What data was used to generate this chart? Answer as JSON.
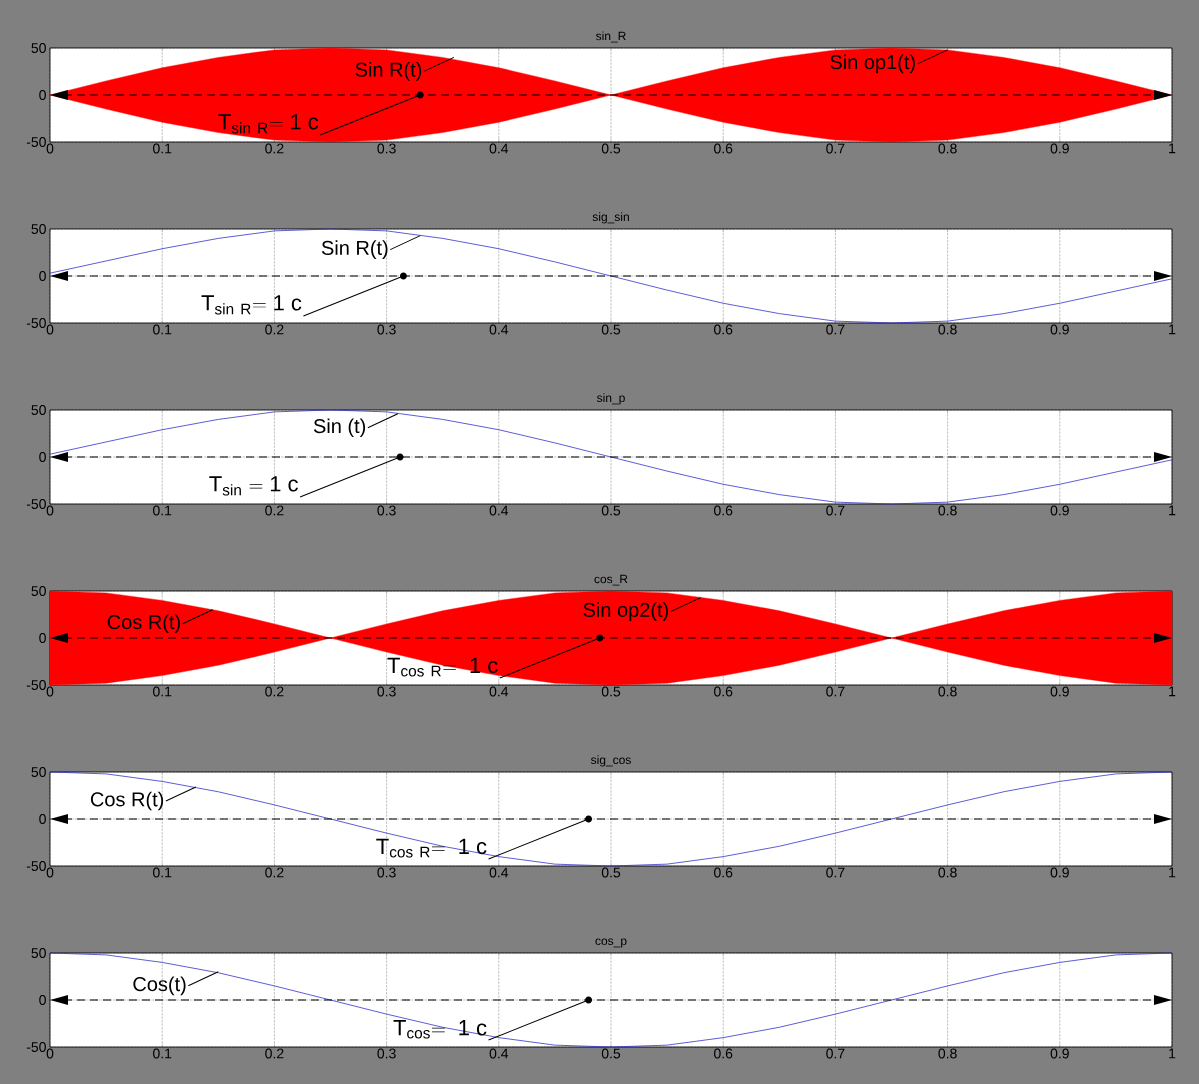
{
  "chart_data": [
    {
      "type": "area",
      "title": "sin_R",
      "xlim": [
        0,
        1
      ],
      "ylim": [
        -50,
        50
      ],
      "xticks": [
        0,
        0.1,
        0.2,
        0.3,
        0.4,
        0.5,
        0.6,
        0.7,
        0.8,
        0.9,
        1
      ],
      "yticks": [
        -50,
        0,
        50
      ],
      "grid": true,
      "x": [
        0,
        0.05,
        0.1,
        0.15,
        0.2,
        0.25,
        0.3,
        0.35,
        0.4,
        0.45,
        0.5,
        0.55,
        0.6,
        0.65,
        0.7,
        0.75,
        0.8,
        0.85,
        0.9,
        0.95,
        1
      ],
      "series": [
        {
          "color": "#ff0000",
          "values": [
            0,
            15,
            29,
            40,
            48,
            50,
            48,
            40,
            29,
            15,
            0,
            15,
            29,
            40,
            48,
            50,
            48,
            40,
            29,
            15,
            0
          ]
        },
        {
          "color": "#ff0000",
          "values": [
            0,
            -15,
            -29,
            -40,
            -48,
            -50,
            -48,
            -40,
            -29,
            -15,
            0,
            -15,
            -29,
            -40,
            -48,
            -50,
            -48,
            -40,
            -29,
            -15,
            0
          ]
        }
      ],
      "ref_lines": [
        {
          "axis": "y",
          "value": 0,
          "line_style": "dashed"
        }
      ],
      "annotations": [
        {
          "text": "Sin R(t)",
          "x": 0.36,
          "y": 40
        },
        {
          "text": "Sin op1(t)",
          "x": 0.8,
          "y": 48
        },
        {
          "text": "\\mathrm{T}_{\\mathrm{sin\\ R}}\\mathrm{=1\\ c}",
          "x": 0.33,
          "y": 0
        }
      ]
    },
    {
      "type": "line",
      "title": "sig_sin",
      "xlim": [
        0,
        1
      ],
      "ylim": [
        -50,
        50
      ],
      "xticks": [
        0,
        0.1,
        0.2,
        0.3,
        0.4,
        0.5,
        0.6,
        0.7,
        0.8,
        0.9,
        1
      ],
      "yticks": [
        -50,
        0,
        50
      ],
      "grid": true,
      "x": [
        0,
        0.05,
        0.1,
        0.15,
        0.2,
        0.25,
        0.3,
        0.35,
        0.4,
        0.45,
        0.5,
        0.55,
        0.6,
        0.65,
        0.7,
        0.75,
        0.8,
        0.85,
        0.9,
        0.95,
        1
      ],
      "series": [
        {
          "color": "#3333cc",
          "values": [
            3,
            16,
            29,
            40,
            48,
            50,
            48,
            40,
            29,
            15,
            0,
            -15,
            -29,
            -40,
            -48,
            -50,
            -48,
            -40,
            -29,
            -16,
            -3
          ]
        }
      ],
      "ref_lines": [
        {
          "axis": "y",
          "value": 0,
          "line_style": "dashed"
        }
      ],
      "annotations": [
        {
          "text": "Sin R(t)",
          "x": 0.33,
          "y": 43
        },
        {
          "text": "\\mathrm{T}_{\\mathrm{sin\\ R}}\\mathrm{=1\\ c}",
          "x": 0.315,
          "y": 0
        }
      ]
    },
    {
      "type": "line",
      "title": "sin_p",
      "xlim": [
        0,
        1
      ],
      "ylim": [
        -50,
        50
      ],
      "xticks": [
        0,
        0.1,
        0.2,
        0.3,
        0.4,
        0.5,
        0.6,
        0.7,
        0.8,
        0.9,
        1
      ],
      "yticks": [
        -50,
        0,
        50
      ],
      "grid": true,
      "x": [
        0,
        0.05,
        0.1,
        0.15,
        0.2,
        0.25,
        0.3,
        0.35,
        0.4,
        0.45,
        0.5,
        0.55,
        0.6,
        0.65,
        0.7,
        0.75,
        0.8,
        0.85,
        0.9,
        0.95,
        1
      ],
      "series": [
        {
          "color": "#3333cc",
          "values": [
            3,
            16,
            29,
            40,
            48,
            50,
            48,
            40,
            29,
            15,
            0,
            -15,
            -29,
            -40,
            -48,
            -50,
            -48,
            -40,
            -29,
            -16,
            -3
          ]
        }
      ],
      "ref_lines": [
        {
          "axis": "y",
          "value": 0,
          "line_style": "dashed"
        }
      ],
      "annotations": [
        {
          "text": "Sin (t)",
          "x": 0.31,
          "y": 46
        },
        {
          "text": "\\mathrm{T}_{\\mathrm{sin}}\\mathrm{\\ =1\\ c}",
          "x": 0.312,
          "y": 0
        }
      ]
    },
    {
      "type": "area",
      "title": "cos_R",
      "xlim": [
        0,
        1
      ],
      "ylim": [
        -50,
        50
      ],
      "xticks": [
        0,
        0.1,
        0.2,
        0.3,
        0.4,
        0.5,
        0.6,
        0.7,
        0.8,
        0.9,
        1
      ],
      "yticks": [
        -50,
        0,
        50
      ],
      "grid": true,
      "x": [
        0,
        0.05,
        0.1,
        0.15,
        0.2,
        0.25,
        0.3,
        0.35,
        0.4,
        0.45,
        0.5,
        0.55,
        0.6,
        0.65,
        0.7,
        0.75,
        0.8,
        0.85,
        0.9,
        0.95,
        1
      ],
      "series": [
        {
          "color": "#ff0000",
          "values": [
            50,
            48,
            40,
            29,
            15,
            0,
            15,
            29,
            40,
            48,
            50,
            48,
            40,
            29,
            15,
            0,
            15,
            29,
            40,
            48,
            50
          ]
        },
        {
          "color": "#ff0000",
          "values": [
            -50,
            -48,
            -40,
            -29,
            -15,
            0,
            -15,
            -29,
            -40,
            -48,
            -50,
            -48,
            -40,
            -29,
            -15,
            0,
            -15,
            -29,
            -40,
            -48,
            -50
          ]
        }
      ],
      "ref_lines": [
        {
          "axis": "y",
          "value": 0,
          "line_style": "dashed"
        }
      ],
      "annotations": [
        {
          "text": "Cos R(t)",
          "x": 0.145,
          "y": 30
        },
        {
          "text": "Sin op2(t)",
          "x": 0.58,
          "y": 43
        },
        {
          "text": "\\mathrm{T}_{\\mathrm{cos\\ R}}\\mathrm{=\\ 1\\ c}",
          "x": 0.49,
          "y": 0
        }
      ]
    },
    {
      "type": "line",
      "title": "sig_cos",
      "xlim": [
        0,
        1
      ],
      "ylim": [
        -50,
        50
      ],
      "xticks": [
        0,
        0.1,
        0.2,
        0.3,
        0.4,
        0.5,
        0.6,
        0.7,
        0.8,
        0.9,
        1
      ],
      "yticks": [
        -50,
        0,
        50
      ],
      "grid": true,
      "x": [
        0,
        0.05,
        0.1,
        0.15,
        0.2,
        0.25,
        0.3,
        0.35,
        0.4,
        0.45,
        0.5,
        0.55,
        0.6,
        0.65,
        0.7,
        0.75,
        0.8,
        0.85,
        0.9,
        0.95,
        1
      ],
      "series": [
        {
          "color": "#3333cc",
          "values": [
            50,
            48,
            40,
            29,
            15,
            0,
            -15,
            -29,
            -40,
            -48,
            -50,
            -48,
            -40,
            -29,
            -15,
            0,
            15,
            29,
            40,
            48,
            50
          ]
        }
      ],
      "ref_lines": [
        {
          "axis": "y",
          "value": 0,
          "line_style": "dashed"
        }
      ],
      "annotations": [
        {
          "text": "Cos R(t)",
          "x": 0.13,
          "y": 34
        },
        {
          "text": "\\mathrm{T}_{\\mathrm{cos\\ R}}\\mathrm{=\\ 1\\ c}",
          "x": 0.48,
          "y": 0
        }
      ]
    },
    {
      "type": "line",
      "title": "cos_p",
      "xlim": [
        0,
        1
      ],
      "ylim": [
        -50,
        50
      ],
      "xticks": [
        0,
        0.1,
        0.2,
        0.3,
        0.4,
        0.5,
        0.6,
        0.7,
        0.8,
        0.9,
        1
      ],
      "yticks": [
        -50,
        0,
        50
      ],
      "grid": true,
      "x": [
        0,
        0.05,
        0.1,
        0.15,
        0.2,
        0.25,
        0.3,
        0.35,
        0.4,
        0.45,
        0.5,
        0.55,
        0.6,
        0.65,
        0.7,
        0.75,
        0.8,
        0.85,
        0.9,
        0.95,
        1
      ],
      "series": [
        {
          "color": "#3333cc",
          "values": [
            50,
            48,
            40,
            29,
            15,
            0,
            -15,
            -29,
            -40,
            -48,
            -50,
            -48,
            -40,
            -29,
            -15,
            0,
            15,
            29,
            40,
            48,
            50
          ]
        }
      ],
      "ref_lines": [
        {
          "axis": "y",
          "value": 0,
          "line_style": "dashed"
        }
      ],
      "annotations": [
        {
          "text": "Cos(t)",
          "x": 0.15,
          "y": 30
        },
        {
          "text": "\\mathrm{T}_{\\mathrm{cos}}\\mathrm{=\\ 1\\ c}",
          "x": 0.48,
          "y": 0
        }
      ]
    }
  ]
}
